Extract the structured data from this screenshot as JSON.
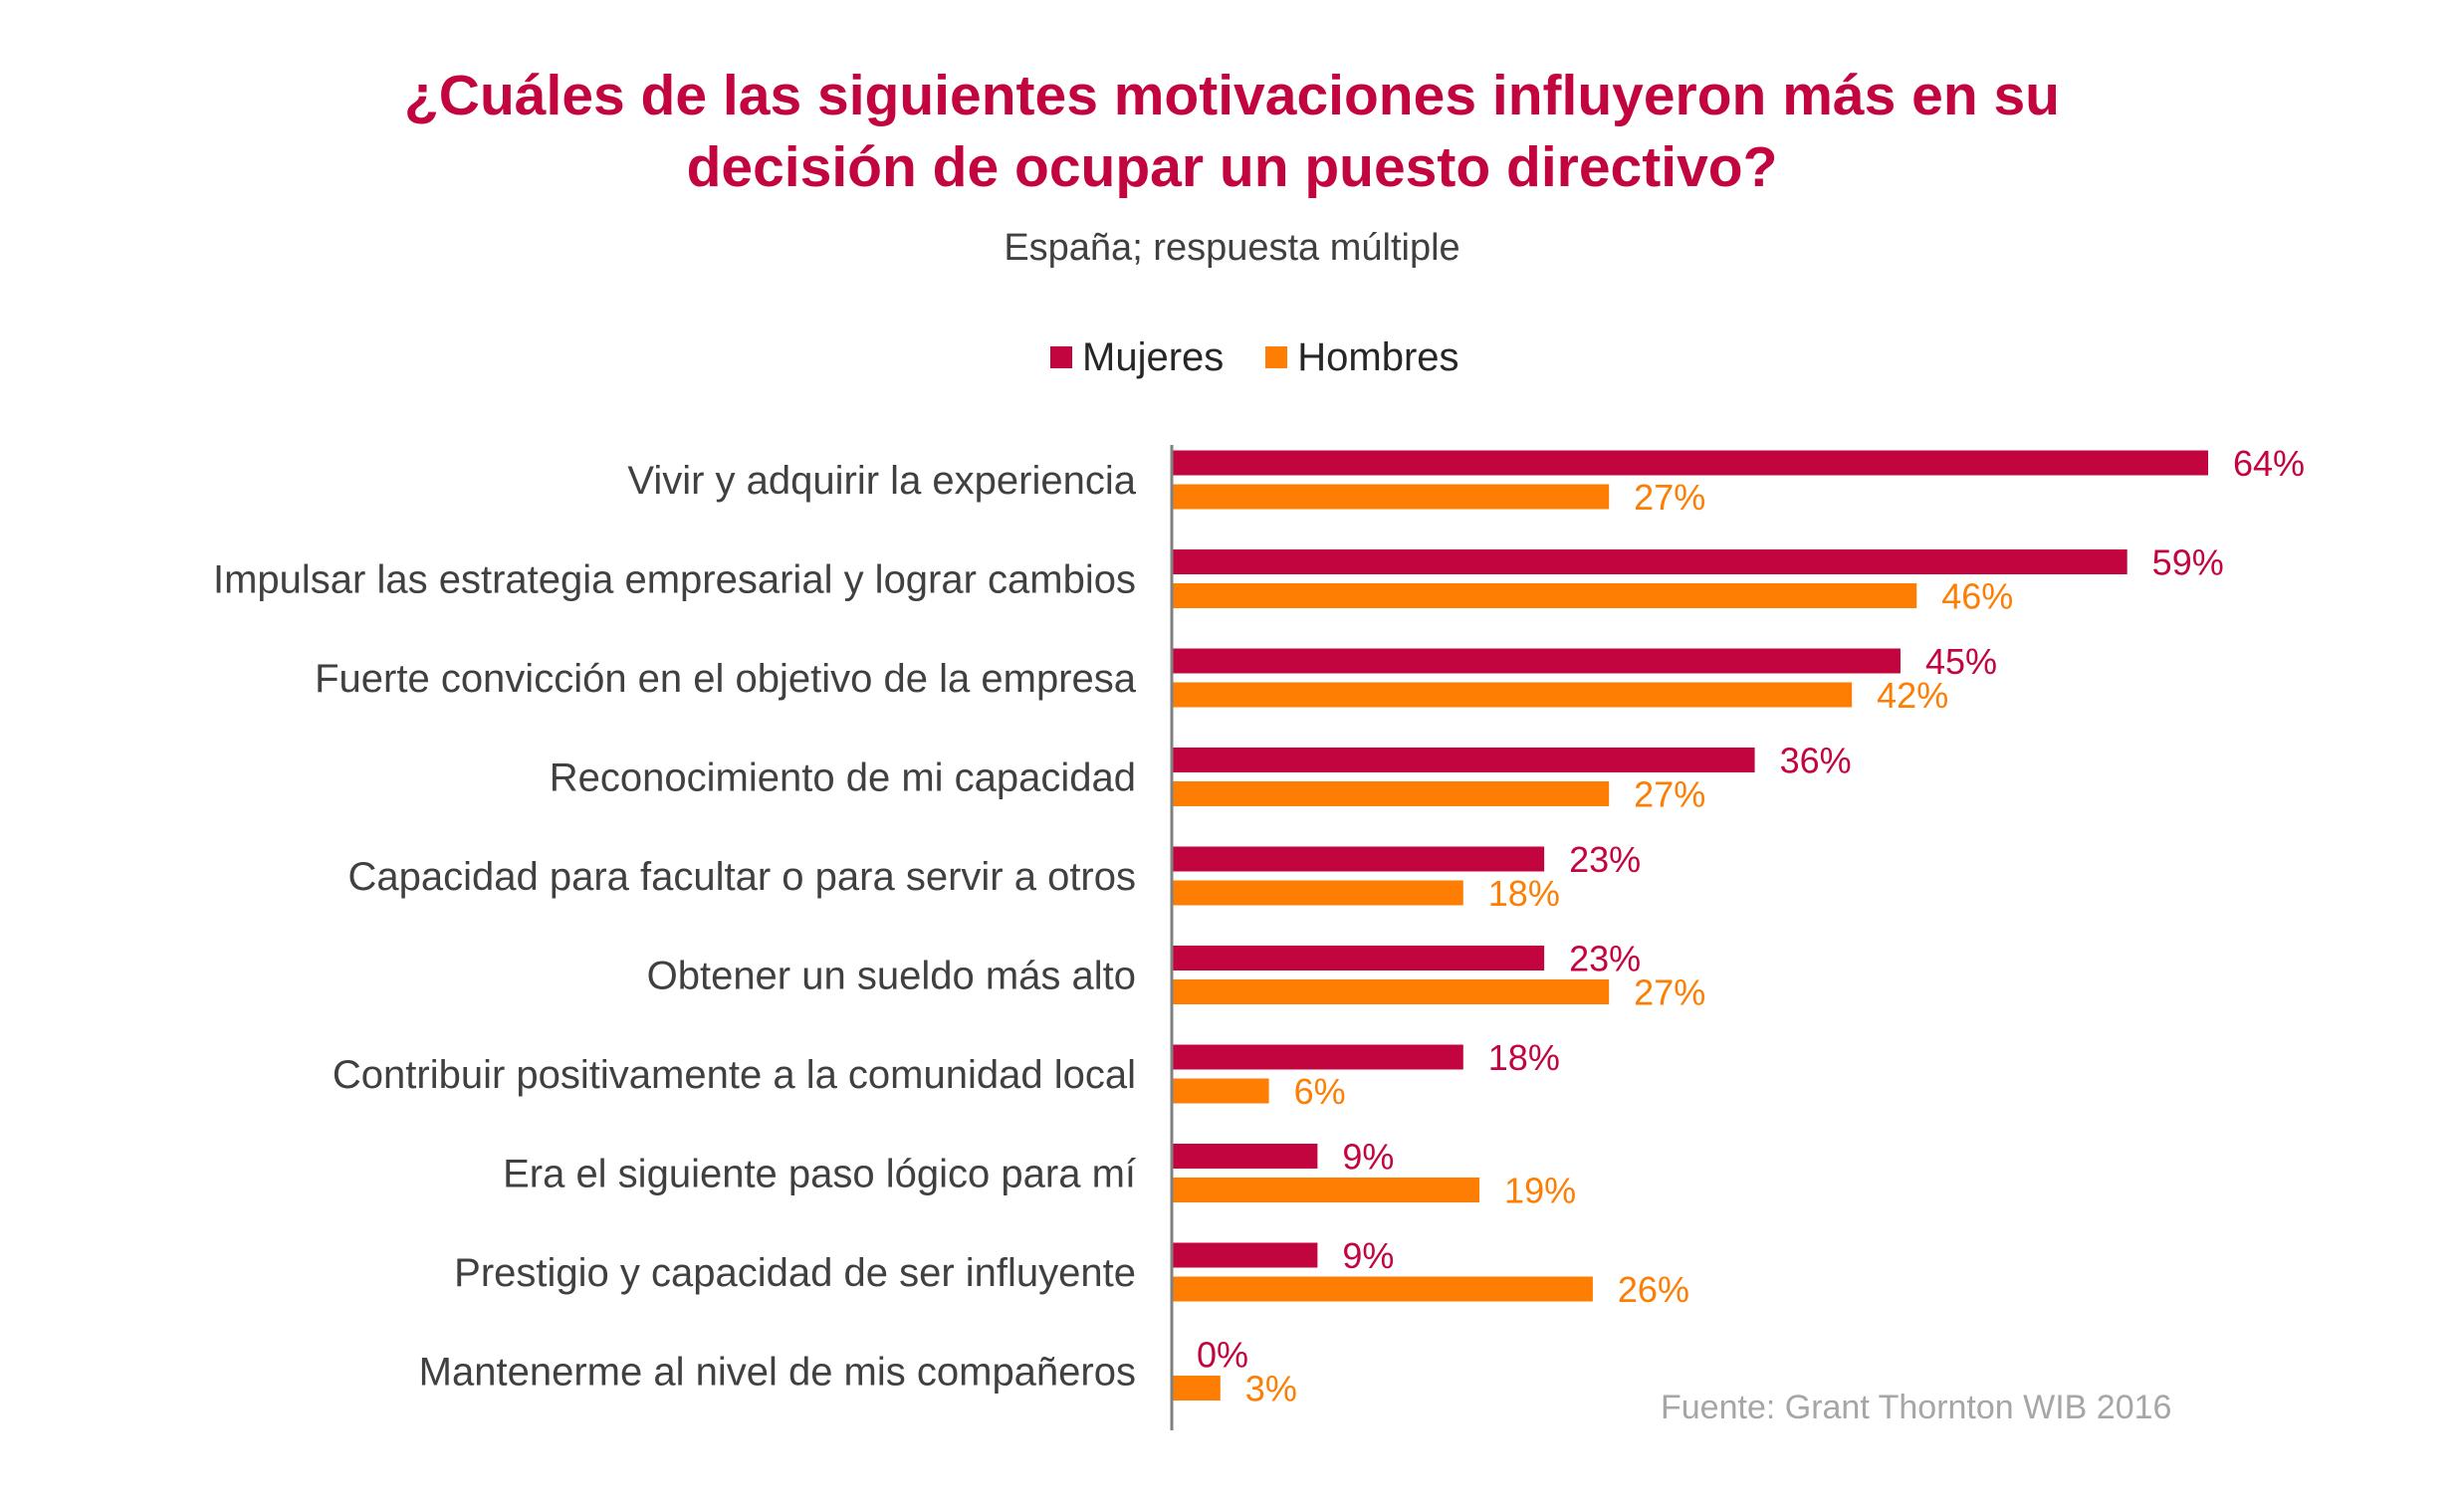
{
  "chart_data": {
    "type": "bar",
    "orientation": "horizontal",
    "title_lines": [
      "¿Cuáles de las siguientes motivaciones influyeron más en su",
      "decisión de ocupar un puesto directivo?"
    ],
    "subtitle": "España; respuesta múltiple",
    "categories": [
      "Vivir y adquirir la experiencia",
      "Impulsar las estrategia empresarial y lograr cambios",
      "Fuerte convicción en el objetivo de la empresa",
      "Reconocimiento de mi capacidad",
      "Capacidad para facultar o para servir a otros",
      "Obtener un sueldo más alto",
      "Contribuir positivamente a la comunidad local",
      "Era el siguiente paso lógico para mí",
      "Prestigio y capacidad de ser influyente",
      "Mantenerme al nivel de mis compañeros"
    ],
    "series": [
      {
        "name": "Mujeres",
        "color": "#c3053f",
        "values": [
          64,
          59,
          45,
          36,
          23,
          23,
          18,
          9,
          9,
          0
        ],
        "labels": [
          "64%",
          "59%",
          "45%",
          "36%",
          "23%",
          "23%",
          "18%",
          "9%",
          "9%",
          "0%"
        ]
      },
      {
        "name": "Hombres",
        "color": "#fd7e03",
        "values": [
          27,
          46,
          42,
          27,
          18,
          27,
          6,
          19,
          26,
          3
        ],
        "labels": [
          "27%",
          "46%",
          "42%",
          "27%",
          "18%",
          "27%",
          "6%",
          "19%",
          "26%",
          "3%"
        ]
      }
    ],
    "unit": "%",
    "xlim": [
      0,
      64
    ],
    "grid": false,
    "legend_position": "top-center",
    "source": "Fuente: Grant Thornton  WIB 2016"
  }
}
